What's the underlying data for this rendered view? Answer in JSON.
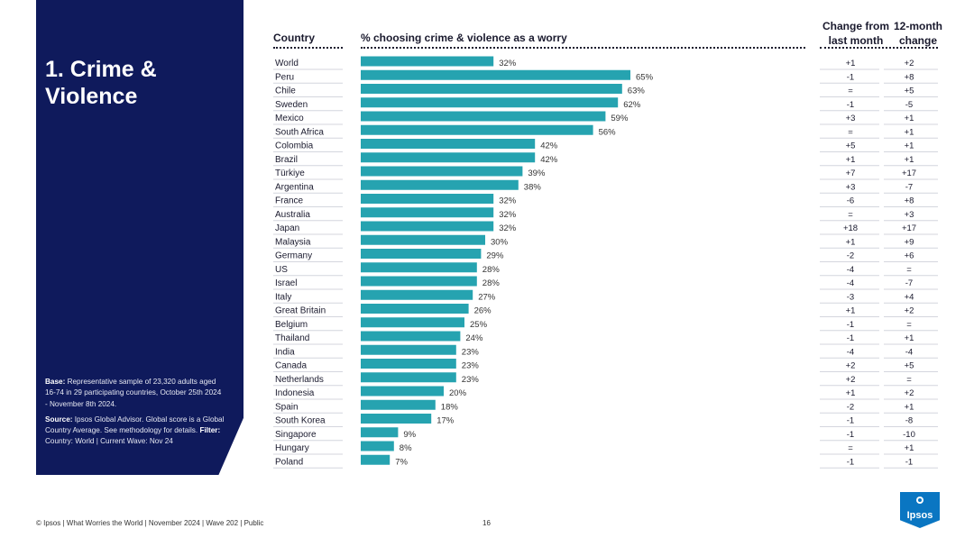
{
  "panel": {
    "title": "1. Crime &\nViolence",
    "base_label": "Base:",
    "base_text": "Representative sample of 23,320 adults aged 16-74 in 29 participating countries, October 25th 2024 - November 8th 2024.",
    "source_label": "Source:",
    "source_text": "Ipsos Global Advisor. Global score is a Global Country Average. See methodology for details.",
    "filter_label": "Filter:",
    "filter_text": "Country: World | Current Wave: Nov 24"
  },
  "headers": {
    "country": "Country",
    "pct": "% choosing crime & violence as a worry",
    "change_line1": "Change from",
    "change_line2": "last month",
    "twelve_line1": "12-month",
    "twelve_line2": "change"
  },
  "colors": {
    "bar": "#26a3b0",
    "navy": "#0f1a5c",
    "logo": "#0a76c2"
  },
  "chart_data": {
    "type": "bar",
    "orientation": "horizontal",
    "title": "% choosing crime & violence as a worry",
    "value_suffix": "%",
    "xlim": [
      0,
      100
    ],
    "grid": false,
    "categories": [
      "World",
      "Peru",
      "Chile",
      "Sweden",
      "Mexico",
      "South Africa",
      "Colombia",
      "Brazil",
      "Türkiye",
      "Argentina",
      "France",
      "Australia",
      "Japan",
      "Malaysia",
      "Germany",
      "US",
      "Israel",
      "Italy",
      "Great Britain",
      "Belgium",
      "Thailand",
      "India",
      "Canada",
      "Netherlands",
      "Indonesia",
      "Spain",
      "South Korea",
      "Singapore",
      "Hungary",
      "Poland"
    ],
    "values": [
      32,
      65,
      63,
      62,
      59,
      56,
      42,
      42,
      39,
      38,
      32,
      32,
      32,
      30,
      29,
      28,
      28,
      27,
      26,
      25,
      24,
      23,
      23,
      23,
      20,
      18,
      17,
      9,
      8,
      7
    ],
    "change_from_last_month": [
      "+1",
      "-1",
      "=",
      "-1",
      "+3",
      "=",
      "+5",
      "+1",
      "+7",
      "+3",
      "-6",
      "=",
      "+18",
      "+1",
      "-2",
      "-4",
      "-4",
      "-3",
      "+1",
      "-1",
      "-1",
      "-4",
      "+2",
      "+2",
      "+1",
      "-2",
      "-1",
      "-1",
      "=",
      "-1"
    ],
    "twelve_month_change": [
      "+2",
      "+8",
      "+5",
      "-5",
      "+1",
      "+1",
      "+1",
      "+1",
      "+17",
      "-7",
      "+8",
      "+3",
      "+17",
      "+9",
      "+6",
      "=",
      "-7",
      "+4",
      "+2",
      "=",
      "+1",
      "-4",
      "+5",
      "=",
      "+2",
      "+1",
      "-8",
      "-10",
      "+1",
      "-1"
    ]
  },
  "footer": {
    "text": "© Ipsos | What Worries the World | November 2024 | Wave 202 | Public",
    "page": "16",
    "logo": "Ipsos"
  }
}
